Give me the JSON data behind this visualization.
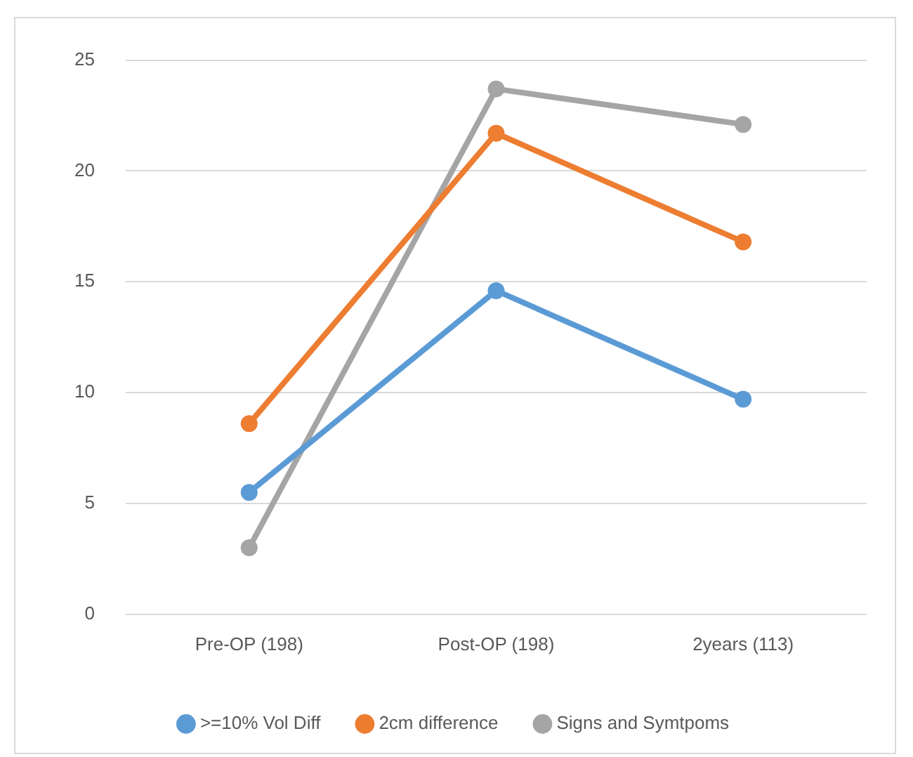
{
  "chart_data": {
    "type": "line",
    "categories": [
      "Pre-OP (198)",
      "Post-OP (198)",
      "2years (113)"
    ],
    "series": [
      {
        "name": ">=10% Vol Diff",
        "color": "#5b9bd5",
        "values": [
          5.5,
          14.6,
          9.7
        ]
      },
      {
        "name": "2cm difference",
        "color": "#ed7d31",
        "values": [
          8.6,
          21.7,
          16.8
        ]
      },
      {
        "name": "Signs and Symtpoms",
        "color": "#a5a5a5",
        "values": [
          3.0,
          23.7,
          22.1
        ]
      }
    ],
    "ylim": [
      0,
      25
    ],
    "yticks": [
      0,
      5,
      10,
      15,
      20,
      25
    ],
    "grid": "y",
    "legend": "bottom",
    "marker": "circle",
    "line_style": "solid"
  }
}
